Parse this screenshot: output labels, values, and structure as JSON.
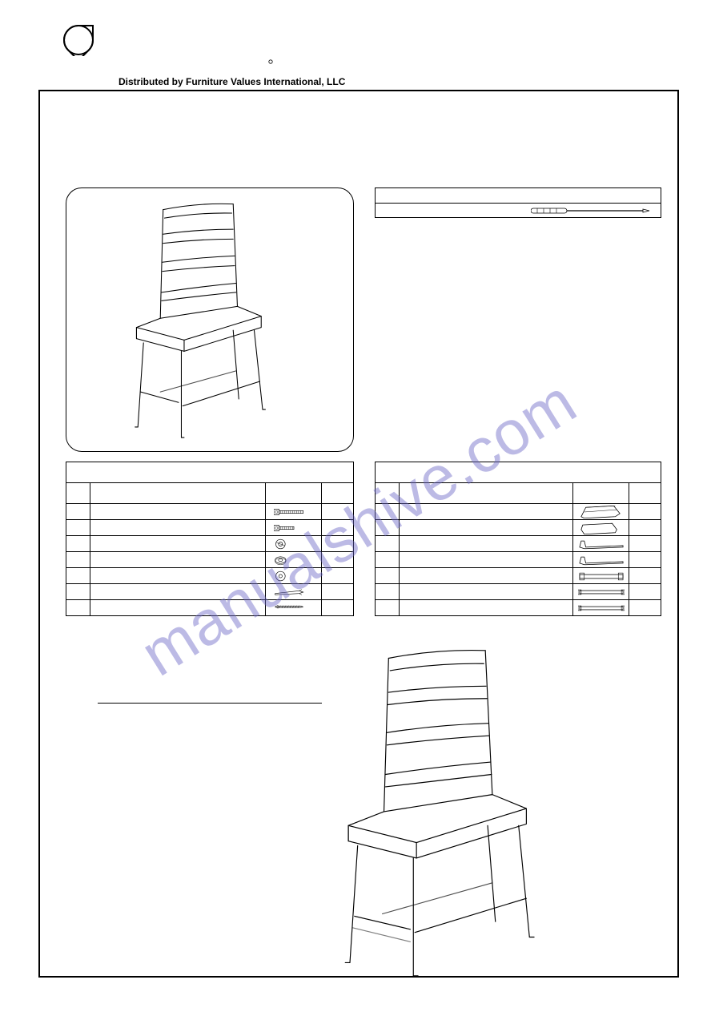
{
  "distributor_line": "Distributed by Furniture Values International, LLC",
  "tools": {
    "header": "",
    "tool_name": ""
  },
  "hardware_table": {
    "header": "",
    "cols": [
      "",
      "",
      "",
      ""
    ],
    "rows": [
      {
        "no": "",
        "desc": "",
        "pic": "bolt-long",
        "qty": ""
      },
      {
        "no": "",
        "desc": "",
        "pic": "bolt-short",
        "qty": ""
      },
      {
        "no": "",
        "desc": "",
        "pic": "washer-lock",
        "qty": ""
      },
      {
        "no": "",
        "desc": "",
        "pic": "nut",
        "qty": ""
      },
      {
        "no": "",
        "desc": "",
        "pic": "washer-flat",
        "qty": ""
      },
      {
        "no": "",
        "desc": "",
        "pic": "wrench",
        "qty": ""
      },
      {
        "no": "",
        "desc": "",
        "pic": "screw",
        "qty": ""
      }
    ]
  },
  "parts_table": {
    "header": "",
    "cols": [
      "",
      "",
      "",
      ""
    ],
    "rows": [
      {
        "no": "",
        "desc": "",
        "pic": "back",
        "qty": ""
      },
      {
        "no": "",
        "desc": "",
        "pic": "seat",
        "qty": ""
      },
      {
        "no": "",
        "desc": "",
        "pic": "leg",
        "qty": ""
      },
      {
        "no": "",
        "desc": "",
        "pic": "leg",
        "qty": ""
      },
      {
        "no": "",
        "desc": "",
        "pic": "stretcher-side",
        "qty": ""
      },
      {
        "no": "",
        "desc": "",
        "pic": "stretcher",
        "qty": ""
      },
      {
        "no": "",
        "desc": "",
        "pic": "stretcher",
        "qty": ""
      }
    ]
  },
  "step_text": "",
  "watermark": "manualshive.com",
  "colors": {
    "border": "#000000",
    "bg": "#ffffff",
    "watermark": "rgba(106,103,197,0.45)"
  }
}
